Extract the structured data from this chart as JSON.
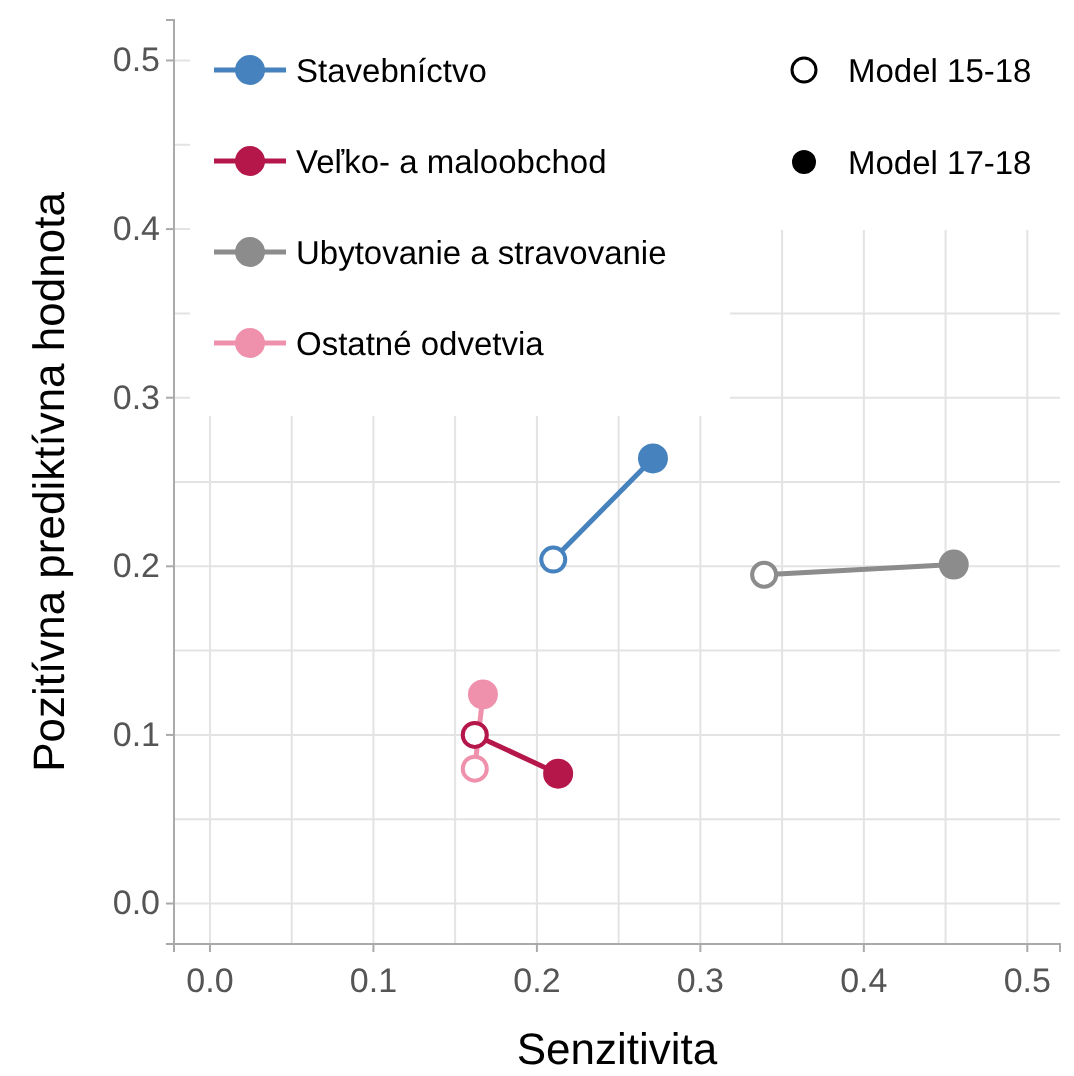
{
  "chart_data": {
    "type": "line",
    "xlabel": "Senzitivita",
    "ylabel": "Pozitívna prediktívna hodnota",
    "xlim": [
      -0.022,
      0.52
    ],
    "ylim": [
      -0.024,
      0.524
    ],
    "xticks": [
      {
        "value": 0,
        "label": "0.0"
      },
      {
        "value": 0.1,
        "label": "0.1"
      },
      {
        "value": 0.2,
        "label": "0.2"
      },
      {
        "value": 0.3,
        "label": "0.3"
      },
      {
        "value": 0.4,
        "label": "0.4"
      },
      {
        "value": 0.5,
        "label": "0.5"
      }
    ],
    "yticks": [
      {
        "value": 0,
        "label": "0.0"
      },
      {
        "value": 0.1,
        "label": "0.1"
      },
      {
        "value": 0.2,
        "label": "0.2"
      },
      {
        "value": 0.3,
        "label": "0.3"
      },
      {
        "value": 0.4,
        "label": "0.4"
      },
      {
        "value": 0.5,
        "label": "0.5"
      }
    ],
    "grid": true,
    "legend": "top left",
    "marker": "circle",
    "line_style": "solid",
    "annotations": [
      "Model 15-18",
      "Model 17-18"
    ],
    "series": [
      {
        "name": "Stavebníctvo",
        "color": "#4682bd",
        "x": [
          0.21,
          0.271
        ],
        "values": [
          0.204,
          0.264
        ]
      },
      {
        "name": "Veľko- a maloobchod",
        "color": "#b5174b",
        "x": [
          0.162,
          0.213
        ],
        "values": [
          0.1,
          0.077
        ]
      },
      {
        "name": "Ubytovanie a stravovanie",
        "color": "#8c8c8c",
        "x": [
          0.339,
          0.455
        ],
        "values": [
          0.195,
          0.201
        ]
      },
      {
        "name": "Ostatné odvetvia",
        "color": "#ef91ad",
        "x": [
          0.162,
          0.167
        ],
        "values": [
          0.08,
          0.124
        ]
      }
    ]
  }
}
